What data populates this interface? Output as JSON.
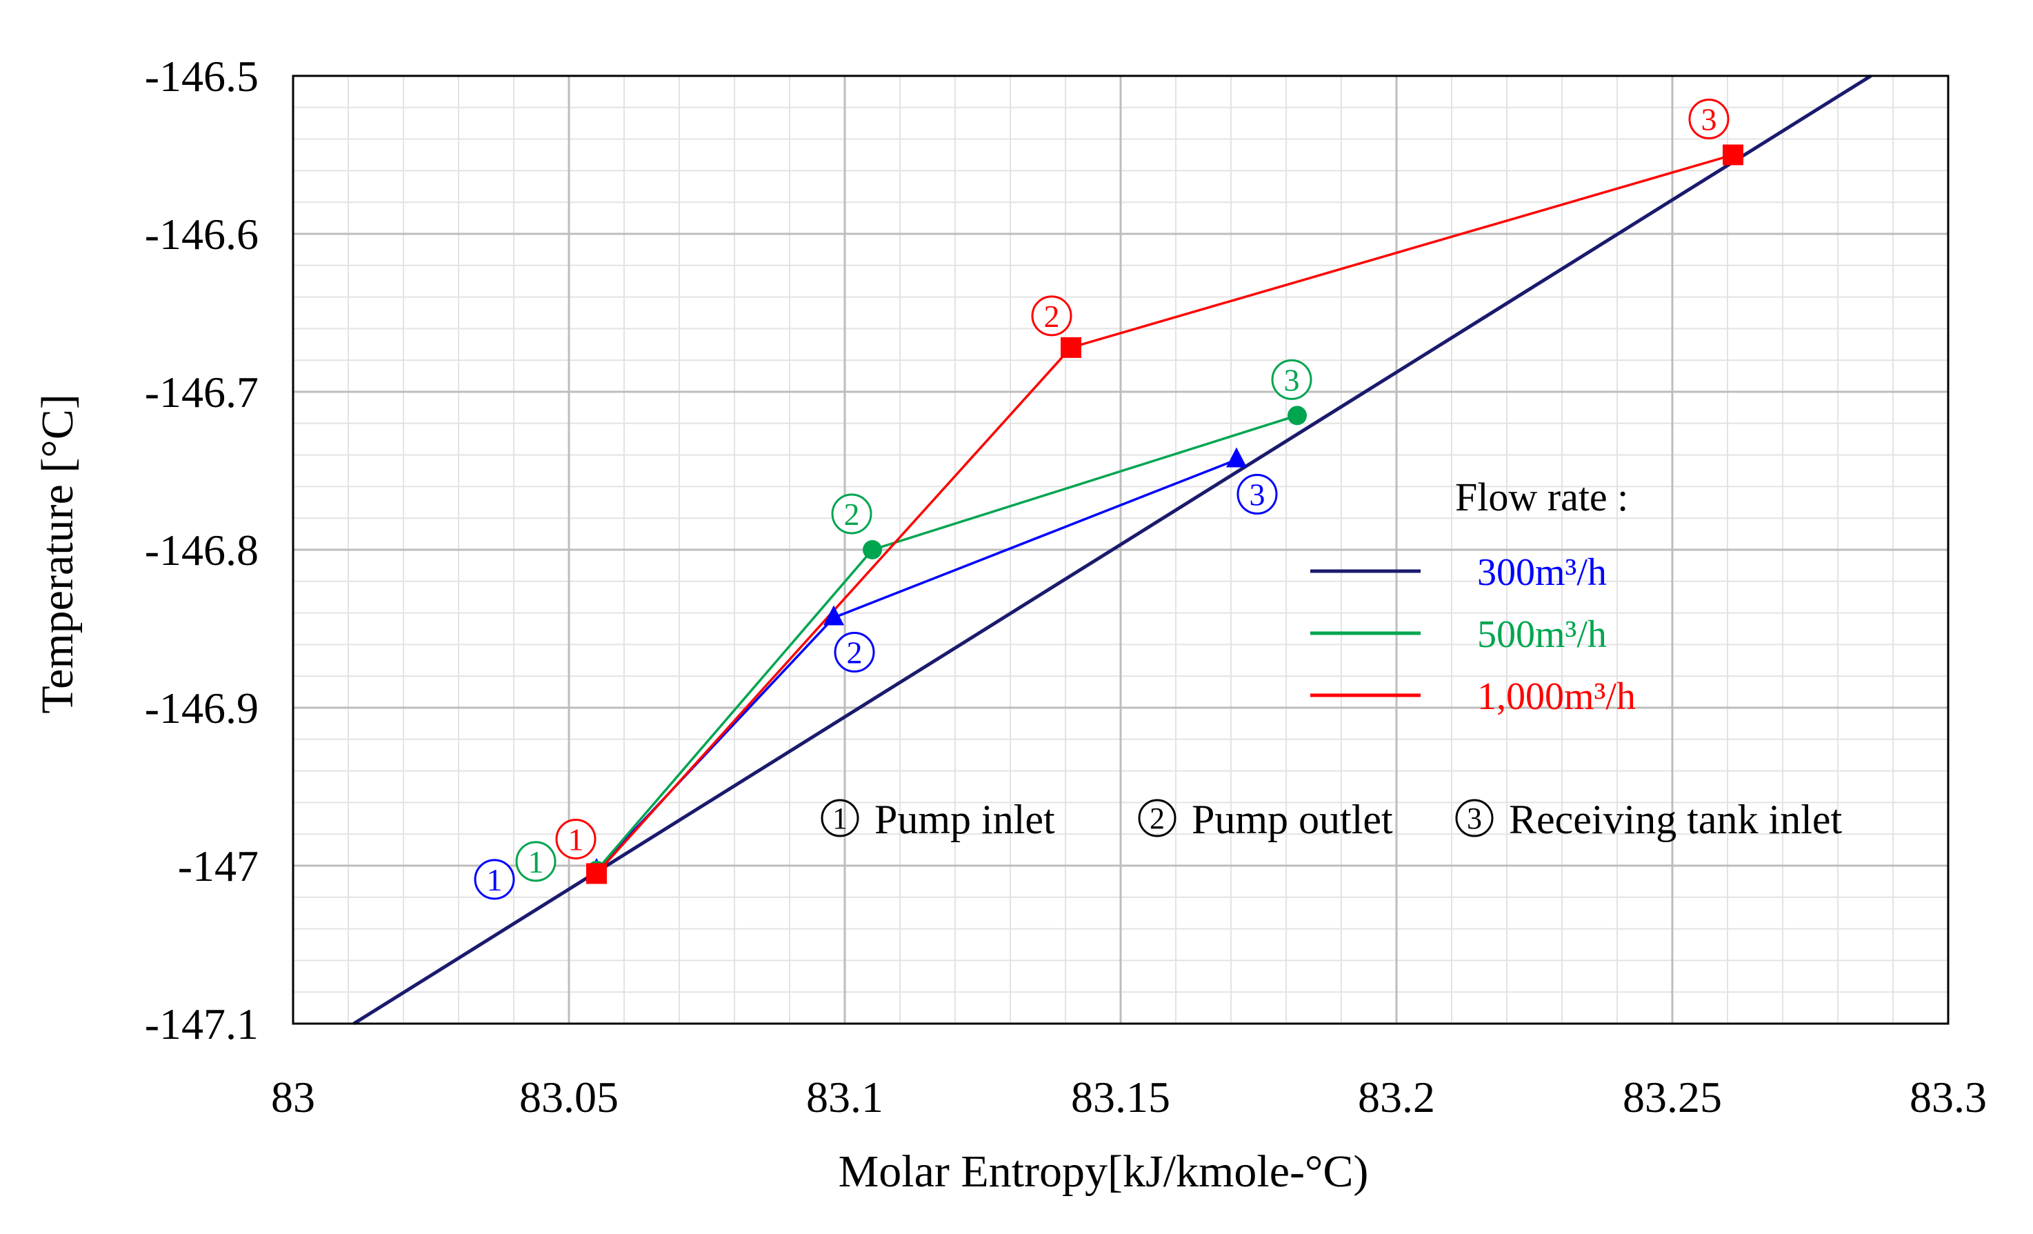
{
  "chart_data": {
    "type": "line",
    "title": "",
    "xlabel": "Molar Entropy[kJ/kmole-°C)",
    "ylabel": "Temperature [°C]",
    "xlim": [
      83,
      83.3
    ],
    "ylim": [
      -147.1,
      -146.5
    ],
    "x_ticks": [
      83,
      83.05,
      83.1,
      83.15,
      83.2,
      83.25,
      83.3
    ],
    "x_tick_labels": [
      "83",
      "83.05",
      "83.1",
      "83.15",
      "83.2",
      "83.25",
      "83.3"
    ],
    "y_ticks": [
      -147.1,
      -147,
      -146.9,
      -146.8,
      -146.7,
      -146.6,
      -146.5
    ],
    "y_tick_labels": [
      "-147.1",
      "-147",
      "-146.9",
      "-146.8",
      "-146.7",
      "-146.6",
      "-146.5"
    ],
    "grid": true,
    "saturation_line": {
      "color": "#1a1a6e",
      "points": [
        [
          83.011,
          -147.1
        ],
        [
          83.286,
          -146.5
        ]
      ]
    },
    "legend": {
      "title": "Flow rate :",
      "placement": "right",
      "entries": [
        {
          "label": "300m³/h",
          "color": "#0000ff",
          "line_color": "#1a1a6e"
        },
        {
          "label": "500m³/h",
          "color": "#00a550",
          "line_color": "#00a550"
        },
        {
          "label": "1,000m³/h",
          "color": "#ff0000",
          "line_color": "#ff0000"
        }
      ]
    },
    "series": [
      {
        "color": "#0000ff",
        "marker": "triangle",
        "x": [
          83.055,
          83.098,
          83.171
        ],
        "y": [
          -147.003,
          -146.843,
          -146.743
        ],
        "point_labels": [
          "①",
          "②",
          "③"
        ]
      },
      {
        "color": "#00a550",
        "marker": "circle",
        "x": [
          83.055,
          83.105,
          83.182
        ],
        "y": [
          -147.003,
          -146.8,
          -146.715
        ],
        "point_labels": [
          "①",
          "②",
          "③"
        ]
      },
      {
        "color": "#ff0000",
        "marker": "square",
        "x": [
          83.055,
          83.141,
          83.261
        ],
        "y": [
          -147.005,
          -146.672,
          -146.55
        ],
        "point_labels": [
          "①",
          "②",
          "③"
        ]
      }
    ],
    "point_key": [
      {
        "symbol": "①",
        "text": "Pump inlet"
      },
      {
        "symbol": "②",
        "text": "Pump outlet"
      },
      {
        "symbol": "③",
        "text": "Receiving tank inlet"
      }
    ]
  }
}
